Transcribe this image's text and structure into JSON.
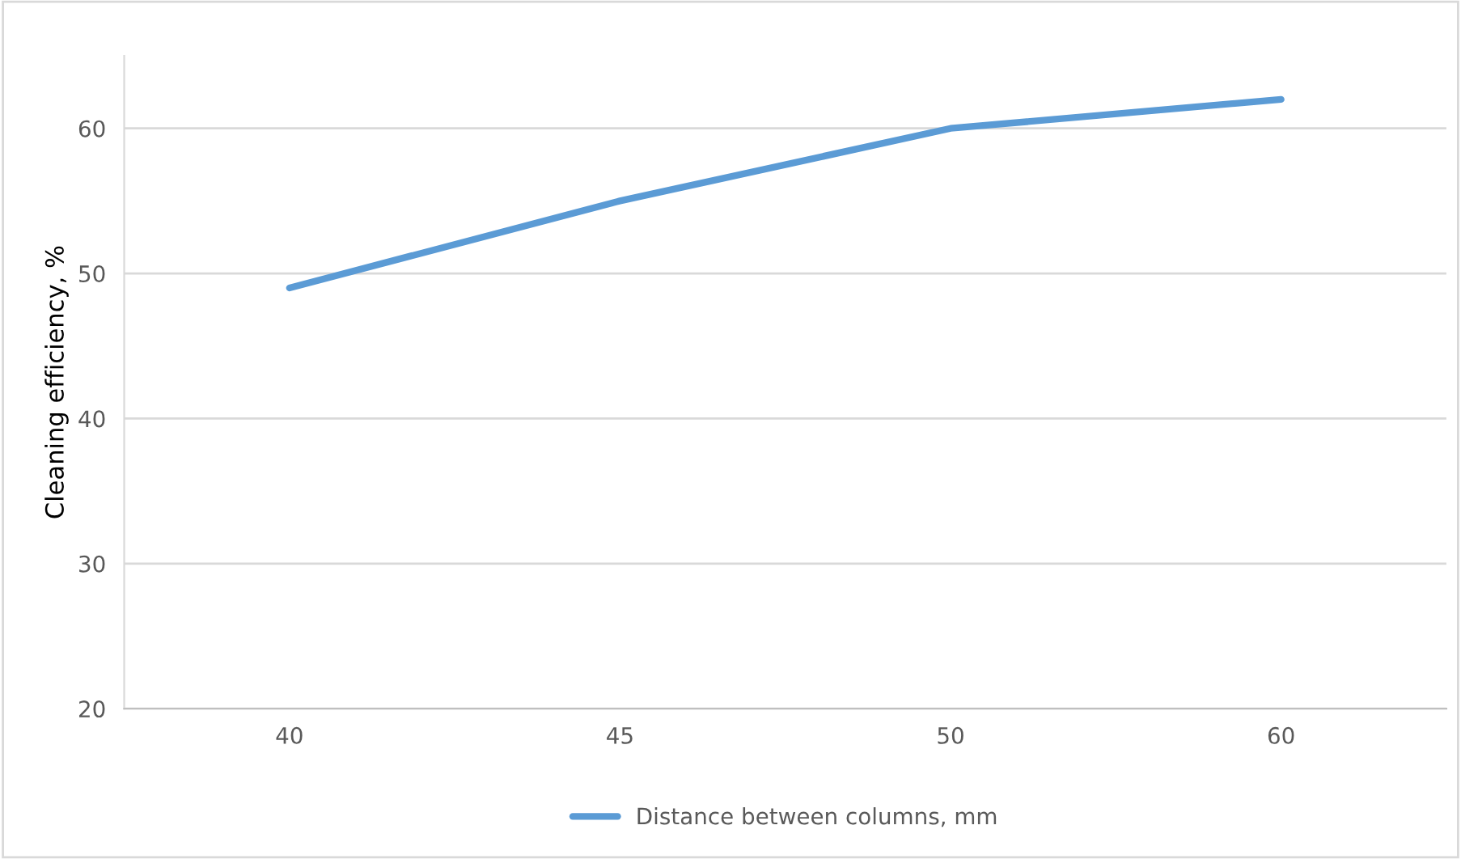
{
  "chart_data": {
    "type": "line",
    "ylabel": "Cleaning efficiency, %",
    "categories": [
      "40",
      "45",
      "50",
      "60"
    ],
    "series": [
      {
        "name": "Distance between columns, mm",
        "color": "#5b9bd5",
        "values": [
          49,
          55,
          60,
          62
        ]
      }
    ],
    "ylim": [
      20,
      65
    ],
    "yticks": [
      20,
      30,
      40,
      50,
      60
    ],
    "grid": "y",
    "legend": "bottom",
    "marker": "none",
    "line_style": "solid"
  }
}
